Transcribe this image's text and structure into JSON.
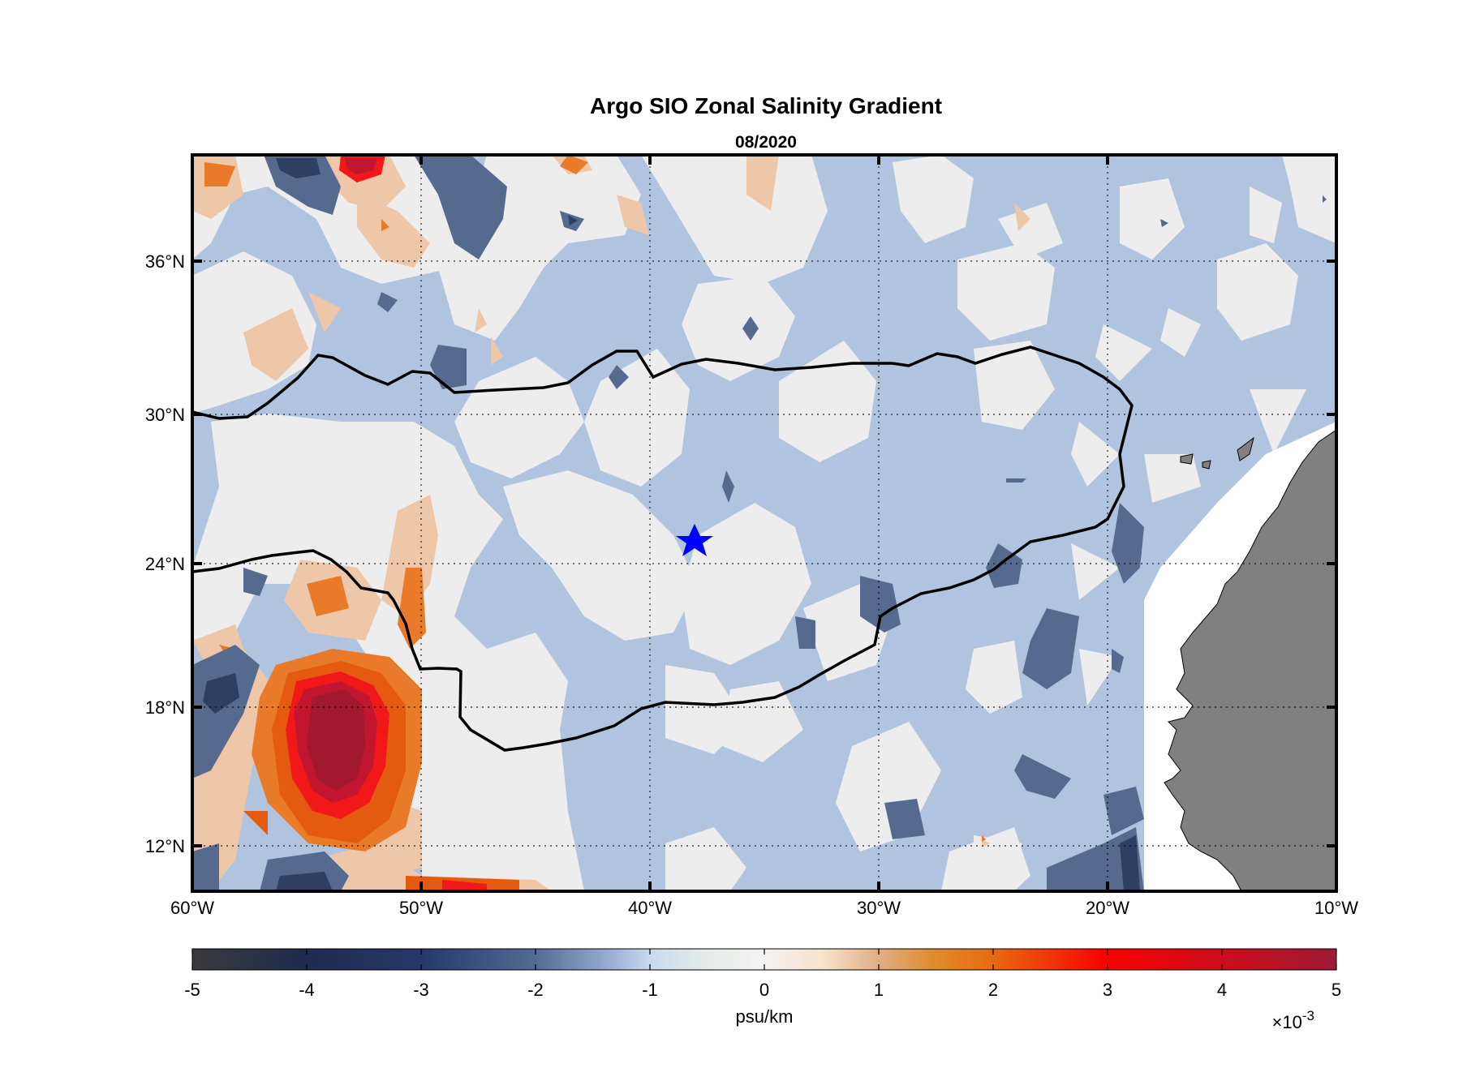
{
  "title": "Argo SIO Zonal Salinity Gradient",
  "subtitle": "08/2020",
  "map": {
    "lon_range": [
      -60,
      -10
    ],
    "lat_range": [
      10,
      39
    ],
    "x_ticks": [
      {
        "value": -60,
        "label": "60°W"
      },
      {
        "value": -50,
        "label": "50°W"
      },
      {
        "value": -40,
        "label": "40°W"
      },
      {
        "value": -30,
        "label": "30°W"
      },
      {
        "value": -20,
        "label": "20°W"
      },
      {
        "value": -10,
        "label": "10°W"
      }
    ],
    "y_ticks": [
      {
        "value": 12,
        "label": "12°N"
      },
      {
        "value": 18,
        "label": "18°N"
      },
      {
        "value": 24,
        "label": "24°N"
      },
      {
        "value": 30,
        "label": "30°N"
      },
      {
        "value": 36,
        "label": "36°N"
      }
    ],
    "grid": "dotted",
    "star_marker": {
      "lon": -38.6,
      "lat": 25.0,
      "color": "#0000ff"
    },
    "land_color": "#808080",
    "contour_line_color": "#000000",
    "background_class": "slightly negative (-1 to 0)"
  },
  "colorbar": {
    "label": "psu/km",
    "multiplier_prefix": "×10",
    "multiplier_exponent": "-3",
    "range": [
      -5,
      5
    ],
    "ticks": [
      {
        "value": -5,
        "label": "-5"
      },
      {
        "value": -4,
        "label": "-4"
      },
      {
        "value": -3,
        "label": "-3"
      },
      {
        "value": -2,
        "label": "-2"
      },
      {
        "value": -1,
        "label": "-1"
      },
      {
        "value": 0,
        "label": "0"
      },
      {
        "value": 1,
        "label": "1"
      },
      {
        "value": 2,
        "label": "2"
      },
      {
        "value": 3,
        "label": "3"
      },
      {
        "value": 4,
        "label": "4"
      },
      {
        "value": 5,
        "label": "5"
      }
    ],
    "stops": [
      {
        "v": -5,
        "color": "#3a3a3a"
      },
      {
        "v": -4,
        "color": "#1f2b4e"
      },
      {
        "v": -3,
        "color": "#26386b"
      },
      {
        "v": -2,
        "color": "#536a96"
      },
      {
        "v": -1.3,
        "color": "#9fb3d6"
      },
      {
        "v": -1,
        "color": "#c9d9ee"
      },
      {
        "v": -0.5,
        "color": "#e6ede8"
      },
      {
        "v": 0,
        "color": "#f2f2f2"
      },
      {
        "v": 0.5,
        "color": "#f7e4cc"
      },
      {
        "v": 1,
        "color": "#e0ad84"
      },
      {
        "v": 1.5,
        "color": "#e08a2a"
      },
      {
        "v": 2,
        "color": "#e76a10"
      },
      {
        "v": 3,
        "color": "#f80000"
      },
      {
        "v": 5,
        "color": "#9e1a36"
      }
    ]
  },
  "levels": {
    "c_n4": "#2f3f63",
    "c_n2": "#56698f",
    "c_n1": "#b0c4e0",
    "c_0": "#ededed",
    "c_p1": "#eec7a8",
    "c_p2": "#e87a2a",
    "c_p3": "#e45a10",
    "c_p4": "#f01818",
    "c_p5": "#c21530",
    "c_p6": "#a1182f"
  }
}
